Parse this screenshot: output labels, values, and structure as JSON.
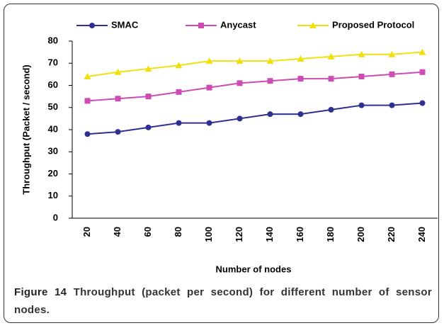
{
  "chart_data": {
    "type": "line",
    "categories": [
      "20",
      "40",
      "60",
      "80",
      "100",
      "120",
      "140",
      "160",
      "180",
      "200",
      "220",
      "240"
    ],
    "series": [
      {
        "name": "SMAC",
        "color": "#2e3192",
        "marker": "circle",
        "values": [
          38,
          39,
          41,
          43,
          43,
          45,
          47,
          47,
          49,
          51,
          51,
          52
        ]
      },
      {
        "name": "Anycast",
        "color": "#cc4cb4",
        "marker": "square",
        "values": [
          53,
          54,
          55,
          57,
          59,
          61,
          62,
          63,
          63,
          64,
          65,
          66
        ]
      },
      {
        "name": "Proposed Protocol",
        "color": "#f0e010",
        "marker": "triangle",
        "values": [
          64,
          66,
          67.5,
          69,
          71,
          71,
          71,
          72,
          73,
          74,
          74,
          75
        ]
      }
    ],
    "ylim": [
      0,
      80
    ],
    "yticks": [
      0,
      10,
      20,
      30,
      40,
      50,
      60,
      70,
      80
    ],
    "xlabel": "Number of nodes",
    "ylabel": "Throughput  (Packet / second)",
    "legend": "top"
  },
  "caption": {
    "label": "Figure 14",
    "text": "Throughput (packet per second) for different number of sensor nodes."
  }
}
